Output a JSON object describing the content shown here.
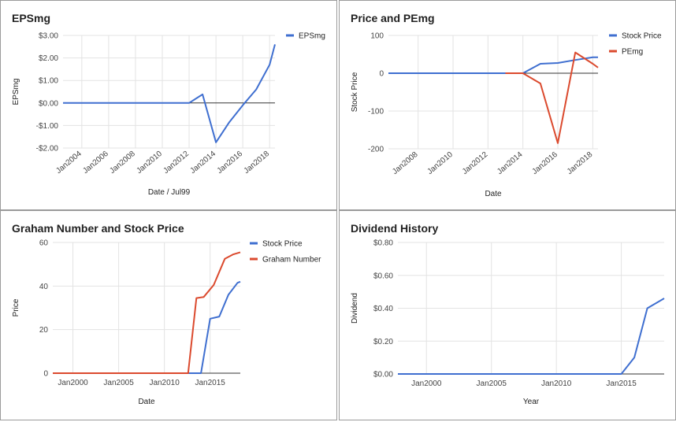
{
  "chart_data": [
    {
      "type": "line",
      "title": "EPSmg",
      "xlabel": "Date / Jul99",
      "ylabel": "EPSmg",
      "ylim": [
        -2,
        3
      ],
      "xlim": [
        2002.6,
        2018.4
      ],
      "x_tick_labels": [
        "Jan2004",
        "Jan2006",
        "Jan2008",
        "Jan2010",
        "Jan2012",
        "Jan2014",
        "Jan2016",
        "Jan2018"
      ],
      "x_ticks": [
        2004,
        2006,
        2008,
        2010,
        2012,
        2014,
        2016,
        2018
      ],
      "x_labels_rotated": true,
      "y_tick_labels": [
        "$3.00",
        "$2.00",
        "$1.00",
        "$0.00",
        "-$1.00",
        "-$2.00"
      ],
      "y_ticks": [
        3,
        2,
        1,
        0,
        -1,
        -2
      ],
      "grid": true,
      "legend": "top-right",
      "series": [
        {
          "name": "EPSmg",
          "color": "#3f6fd0",
          "x": [
            2002.6,
            2004,
            2006,
            2008,
            2010,
            2012,
            2013,
            2014,
            2015,
            2016,
            2017,
            2018,
            2018.4
          ],
          "y": [
            0,
            0,
            0,
            0,
            0,
            0,
            0.38,
            -1.75,
            -0.85,
            -0.1,
            0.6,
            1.7,
            2.6
          ]
        }
      ]
    },
    {
      "type": "line",
      "title": "Price and PEmg",
      "xlabel": "Date",
      "ylabel": "Stock Price",
      "ylim": [
        -200,
        100
      ],
      "xlim": [
        2006.3,
        2018.3
      ],
      "x_tick_labels": [
        "Jan2008",
        "Jan2010",
        "Jan2012",
        "Jan2014",
        "Jan2016",
        "Jan2018"
      ],
      "x_ticks": [
        2008,
        2010,
        2012,
        2014,
        2016,
        2018
      ],
      "x_labels_rotated": true,
      "y_tick_labels": [
        "100",
        "0",
        "-100",
        "-200"
      ],
      "y_ticks": [
        100,
        0,
        -100,
        -200
      ],
      "grid": true,
      "legend": "top-right",
      "series": [
        {
          "name": "Stock Price",
          "color": "#3f6fd0",
          "x": [
            2006.3,
            2008,
            2010,
            2012,
            2013,
            2014,
            2015,
            2016,
            2017,
            2018,
            2018.3
          ],
          "y": [
            0,
            0,
            0,
            0,
            0,
            0,
            25,
            27,
            35,
            42,
            42
          ]
        },
        {
          "name": "PEmg",
          "color": "#db4a2e",
          "x": [
            2013,
            2014,
            2015,
            2016,
            2017,
            2018,
            2018.3
          ],
          "y": [
            0,
            0,
            -27,
            -185,
            55,
            25,
            15
          ]
        }
      ]
    },
    {
      "type": "line",
      "title": "Graham Number and Stock Price",
      "xlabel": "Date",
      "ylabel": "Price",
      "ylim": [
        0,
        60
      ],
      "xlim": [
        1997.8,
        2018.3
      ],
      "x_tick_labels": [
        "Jan2000",
        "Jan2005",
        "Jan2010",
        "Jan2015"
      ],
      "x_ticks": [
        2000,
        2005,
        2010,
        2015
      ],
      "x_labels_rotated": false,
      "y_tick_labels": [
        "60",
        "40",
        "20",
        "0"
      ],
      "y_ticks": [
        60,
        40,
        20,
        0
      ],
      "grid": true,
      "legend": "top-right",
      "series": [
        {
          "name": "Stock Price",
          "color": "#3f6fd0",
          "x": [
            1997.8,
            2000,
            2005,
            2010,
            2013,
            2014,
            2015,
            2016,
            2017,
            2018,
            2018.3
          ],
          "y": [
            0,
            0,
            0,
            0,
            0,
            0,
            25,
            26,
            36,
            41.5,
            42
          ]
        },
        {
          "name": "Graham Number",
          "color": "#db4a2e",
          "x": [
            1997.8,
            2000,
            2005,
            2010,
            2012.6,
            2013.5,
            2014.3,
            2015.4,
            2016.6,
            2017.5,
            2018.3
          ],
          "y": [
            0,
            0,
            0,
            0,
            0,
            34.5,
            35,
            40.5,
            52.5,
            54.5,
            55.5
          ]
        }
      ]
    },
    {
      "type": "line",
      "title": "Dividend History",
      "xlabel": "Year",
      "ylabel": "Dividend",
      "ylim": [
        0,
        0.8
      ],
      "xlim": [
        1997.8,
        2018.3
      ],
      "x_tick_labels": [
        "Jan2000",
        "Jan2005",
        "Jan2010",
        "Jan2015"
      ],
      "x_ticks": [
        2000,
        2005,
        2010,
        2015
      ],
      "x_labels_rotated": false,
      "y_tick_labels": [
        "$0.80",
        "$0.60",
        "$0.40",
        "$0.20",
        "$0.00"
      ],
      "y_ticks": [
        0.8,
        0.6,
        0.4,
        0.2,
        0
      ],
      "grid": true,
      "legend": "none",
      "series": [
        {
          "color": "#3f6fd0",
          "x": [
            1997.8,
            2000,
            2005,
            2010,
            2015,
            2016,
            2017,
            2018.3
          ],
          "y": [
            0,
            0,
            0,
            0,
            0,
            0.1,
            0.4,
            0.46
          ]
        }
      ]
    }
  ]
}
